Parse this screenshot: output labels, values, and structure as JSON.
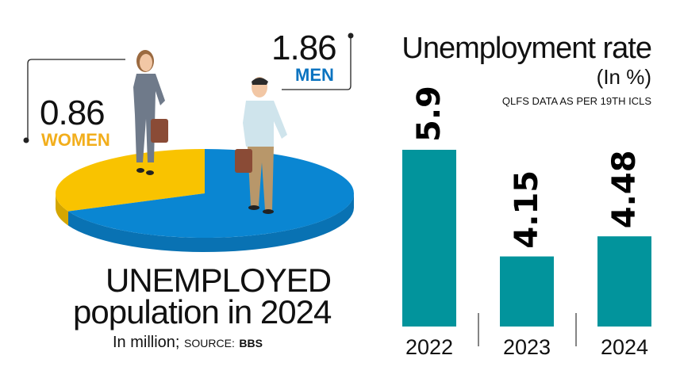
{
  "chart_data": [
    {
      "type": "pie",
      "title": "UNEMPLOYED",
      "subtitle": "population in 2024",
      "unit_note": "In million;",
      "source_label": "SOURCE:",
      "source": "BBS",
      "slices": [
        {
          "label": "WOMEN",
          "value": 0.86,
          "value_label": "0.86",
          "color": "#f9c300"
        },
        {
          "label": "MEN",
          "value": 1.86,
          "value_label": "1.86",
          "color": "#0a86d2"
        }
      ]
    },
    {
      "type": "bar",
      "title": "Unemployment rate",
      "ylabel": "(In %)",
      "note": "QLFS DATA AS PER 19TH ICLS",
      "categories": [
        "2022",
        "2023",
        "2024"
      ],
      "values": [
        5.9,
        4.15,
        4.48
      ],
      "value_labels": [
        "5.9",
        "4.15",
        "4.48"
      ],
      "ylim": [
        3.0,
        5.9
      ],
      "color": "#02949c"
    }
  ]
}
